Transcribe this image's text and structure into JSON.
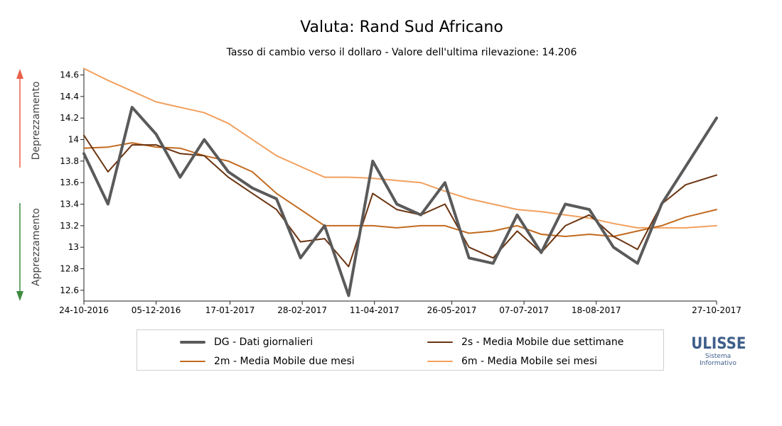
{
  "chart_data": {
    "type": "line",
    "title": "Valuta: Rand Sud Africano",
    "subtitle": "Tasso di cambio verso il dollaro - Valore dell'ultima rilevazione: 14.206",
    "ylim": [
      12.5,
      14.65
    ],
    "yticks": [
      12.6,
      12.8,
      13,
      13.2,
      13.4,
      13.6,
      13.8,
      14,
      14.2,
      14.4,
      14.6
    ],
    "xlim": [
      "2016-10-24",
      "2017-10-27"
    ],
    "xticks": [
      "24-10-2016",
      "05-12-2016",
      "17-01-2017",
      "28-02-2017",
      "11-04-2017",
      "26-05-2017",
      "07-07-2017",
      "18-08-2017",
      "27-10-2017"
    ],
    "x": [
      "2016-10-24",
      "2016-11-07",
      "2016-11-21",
      "2016-12-05",
      "2016-12-19",
      "2017-01-02",
      "2017-01-16",
      "2017-01-30",
      "2017-02-13",
      "2017-02-27",
      "2017-03-13",
      "2017-03-27",
      "2017-04-10",
      "2017-04-24",
      "2017-05-08",
      "2017-05-22",
      "2017-06-05",
      "2017-06-19",
      "2017-07-03",
      "2017-07-17",
      "2017-07-31",
      "2017-08-14",
      "2017-08-28",
      "2017-09-11",
      "2017-09-25",
      "2017-10-09",
      "2017-10-27"
    ],
    "series": [
      {
        "name": "DG - Dati giornalieri",
        "color": "#5a5a5a",
        "values": [
          13.87,
          13.4,
          14.3,
          14.05,
          13.65,
          14.0,
          13.7,
          13.55,
          13.45,
          12.9,
          13.2,
          12.55,
          13.8,
          13.4,
          13.3,
          13.6,
          12.9,
          12.85,
          13.3,
          12.95,
          13.4,
          13.35,
          13.0,
          12.85,
          13.4,
          13.75,
          14.2
        ]
      },
      {
        "name": "2s - Media Mobile due settimane",
        "color": "#6b3410",
        "values": [
          14.04,
          13.7,
          13.95,
          13.95,
          13.87,
          13.85,
          13.65,
          13.5,
          13.35,
          13.05,
          13.08,
          12.82,
          13.5,
          13.35,
          13.3,
          13.4,
          13.0,
          12.9,
          13.15,
          12.95,
          13.2,
          13.3,
          13.1,
          12.98,
          13.4,
          13.58,
          13.67
        ]
      },
      {
        "name": "2m - Media Mobile due mesi",
        "color": "#c26a1f",
        "values": [
          13.92,
          13.93,
          13.97,
          13.93,
          13.92,
          13.85,
          13.8,
          13.7,
          13.5,
          13.35,
          13.2,
          13.2,
          13.2,
          13.18,
          13.2,
          13.2,
          13.13,
          13.15,
          13.2,
          13.12,
          13.1,
          13.12,
          13.1,
          13.15,
          13.2,
          13.28,
          13.35
        ]
      },
      {
        "name": "6m - Media Mobile sei mesi",
        "color": "#f2a05e",
        "values": [
          14.66,
          14.55,
          14.45,
          14.35,
          14.3,
          14.25,
          14.15,
          14.0,
          13.85,
          13.75,
          13.65,
          13.65,
          13.64,
          13.62,
          13.6,
          13.52,
          13.45,
          13.4,
          13.35,
          13.33,
          13.3,
          13.27,
          13.22,
          13.18,
          13.18,
          13.18,
          13.2
        ]
      }
    ],
    "side_labels": {
      "up": "Deprezzamento",
      "down": "Apprezzamento"
    },
    "colors": {
      "up_arrow": "#e8604a",
      "down_arrow": "#3f8a3f"
    }
  },
  "legend": [
    {
      "label": "DG - Dati giornalieri",
      "color": "#5a5a5a",
      "thickness": 4
    },
    {
      "label": "2s - Media Mobile due settimane",
      "color": "#6b3410",
      "thickness": 2
    },
    {
      "label": "2m - Media Mobile due mesi",
      "color": "#c26a1f",
      "thickness": 2
    },
    {
      "label": "6m - Media Mobile sei mesi",
      "color": "#f2a05e",
      "thickness": 2
    }
  ],
  "logo": {
    "name": "ULISSE",
    "line1": "Sistema",
    "line2": "Informativo"
  }
}
